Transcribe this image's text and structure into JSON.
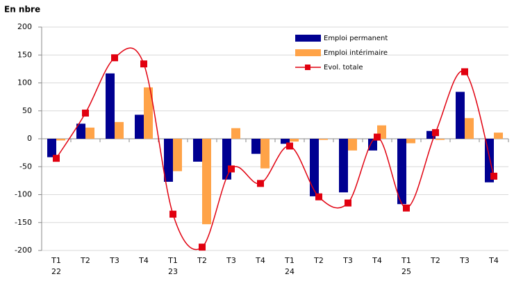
{
  "chart_data": {
    "type": "bar-line",
    "title": "En nbre",
    "categories": [
      "T1\n22",
      "T2",
      "T3",
      "T4",
      "T1\n23",
      "T2",
      "T3",
      "T4",
      "T1\n24",
      "T2",
      "T3",
      "T4",
      "T1\n25",
      "T2",
      "T3",
      "T4"
    ],
    "series": [
      {
        "name": "Emploi permanent",
        "type": "bar",
        "color": "#000091",
        "values": [
          -33,
          27,
          117,
          43,
          -77,
          -41,
          -73,
          -27,
          -9,
          -103,
          -96,
          -21,
          -117,
          14,
          84,
          -78
        ]
      },
      {
        "name": "Emploi intérimaire",
        "type": "bar",
        "color": "#ffa348",
        "values": [
          -3,
          20,
          30,
          92,
          -58,
          -153,
          19,
          -53,
          -5,
          -2,
          -21,
          24,
          -8,
          -2,
          37,
          11
        ]
      },
      {
        "name": "Evol. totale",
        "type": "line",
        "color": "#e1000f",
        "values": [
          -35,
          46,
          145,
          134,
          -135,
          -194,
          -54,
          -80,
          -13,
          -104,
          -115,
          3,
          -124,
          11,
          120,
          -67
        ]
      }
    ],
    "ylim": [
      -200,
      200
    ],
    "yticks": [
      -200,
      -150,
      -100,
      -50,
      0,
      50,
      100,
      150,
      200
    ],
    "grid": true
  }
}
